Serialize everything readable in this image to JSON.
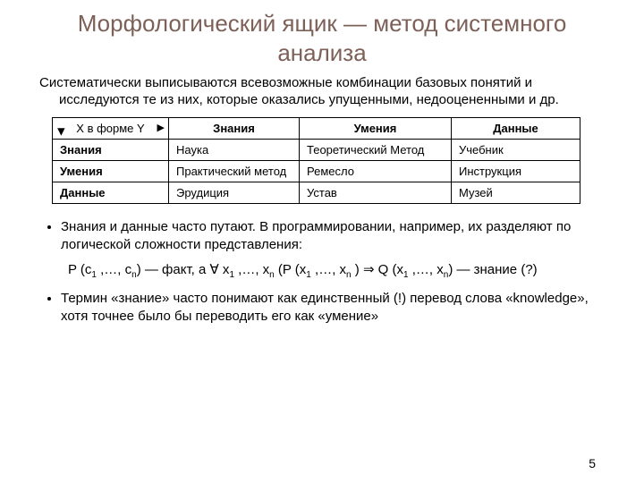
{
  "title": "Морфологический ящик — метод системного анализа",
  "intro": "Систематически выписываются всевозможные комбинации базовых понятий и исследуются те из них, которые оказались упущенными, недооцененными и др.",
  "table": {
    "corner": "X в форме Y",
    "col_headers": [
      "Знания",
      "Умения",
      "Данные"
    ],
    "row_headers": [
      "Знания",
      "Умения",
      "Данные"
    ],
    "cells": [
      [
        "Наука",
        "Теоретический Метод",
        "Учебник"
      ],
      [
        "Практический метод",
        "Ремесло",
        "Инструкция"
      ],
      [
        "Эрудиция",
        "Устав",
        "Музей"
      ]
    ],
    "border_color": "#000000",
    "bg_color": "#ffffff",
    "font_size": 13
  },
  "bullets": [
    "Знания и данные часто путают. В программировании, например, их разделяют по логической сложности представления:",
    "Термин «знание» часто понимают как единственный (!) перевод слова «knowledge», хотя точнее было бы переводить его как «умение»"
  ],
  "formula": {
    "lhs_pre": "P (c",
    "lhs_sub1": "1",
    "lhs_mid": " ,…, c",
    "lhs_subn": "n",
    "lhs_post": ") — факт, а ",
    "forall": "∀",
    "vars_pre": "  x",
    "vars_sub1": "1",
    "vars_mid": " ,…, x",
    "vars_subn": "n",
    "p_pre": " (P (x",
    "p_sub1": "1",
    "p_mid": " ,…, x",
    "p_subn": "n",
    "p_post": " ) ",
    "impl": "⇒",
    "q_pre": " Q (x",
    "q_sub1": "1",
    "q_mid": " ,…, x",
    "q_subn": "n",
    "q_post": ") — знание (?)"
  },
  "page_number": "5",
  "colors": {
    "title": "#7d6057",
    "text": "#000000",
    "background": "#ffffff"
  }
}
